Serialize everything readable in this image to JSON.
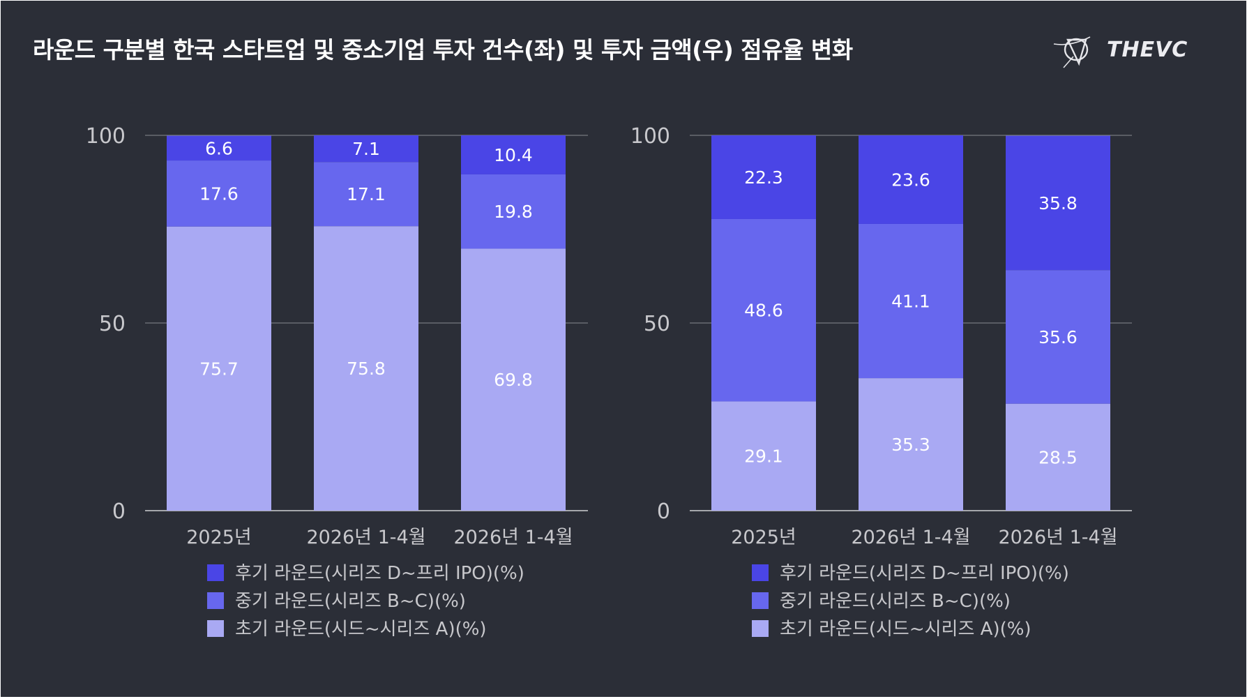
{
  "title": "라운드 구분별 한국 스타트업 및 중소기업 투자 건수(좌) 및 투자 금액(우) 점유율 변화",
  "logo_text": "THEVC",
  "colors": {
    "background": "#2b2e37",
    "late": "#4a45e6",
    "mid": "#6767ee",
    "early": "#a9a9f3",
    "text": "#ffffff",
    "axis_text": "#c8c8cc",
    "gridline": "#8a8c92"
  },
  "chart_data": [
    {
      "type": "bar",
      "stacked": true,
      "categories": [
        "2025년",
        "2026년 1-4월",
        "2026년 1-4월"
      ],
      "ylim": [
        0,
        100
      ],
      "yticks": [
        0,
        50,
        100
      ],
      "grid": true,
      "legend_position": "bottom",
      "series": [
        {
          "name": "초기 라운드(시드~시리즈 A)(%)",
          "key": "early",
          "values": [
            75.7,
            75.8,
            69.8
          ]
        },
        {
          "name": "중기 라운드(시리즈 B~C)(%)",
          "key": "mid",
          "values": [
            17.6,
            17.1,
            19.8
          ]
        },
        {
          "name": "후기 라운드(시리즈 D~프리 IPO)(%)",
          "key": "late",
          "values": [
            6.6,
            7.1,
            10.4
          ]
        }
      ]
    },
    {
      "type": "bar",
      "stacked": true,
      "categories": [
        "2025년",
        "2026년 1-4월",
        "2026년 1-4월"
      ],
      "ylim": [
        0,
        100
      ],
      "yticks": [
        0,
        50,
        100
      ],
      "grid": true,
      "legend_position": "bottom",
      "series": [
        {
          "name": "초기 라운드(시드~시리즈 A)(%)",
          "key": "early",
          "values": [
            29.1,
            35.3,
            28.5
          ]
        },
        {
          "name": "중기 라운드(시리즈 B~C)(%)",
          "key": "mid",
          "values": [
            48.6,
            41.1,
            35.6
          ]
        },
        {
          "name": "후기 라운드(시리즈 D~프리 IPO)(%)",
          "key": "late",
          "values": [
            22.3,
            23.6,
            35.8
          ]
        }
      ]
    }
  ]
}
